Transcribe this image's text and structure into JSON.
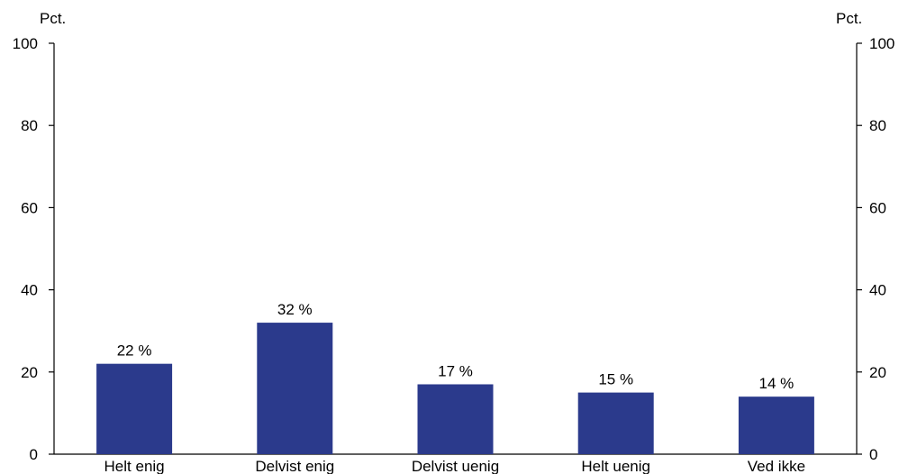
{
  "chart_data": {
    "type": "bar",
    "categories": [
      "Helt enig",
      "Delvist enig",
      "Delvist uenig",
      "Helt uenig",
      "Ved ikke"
    ],
    "values": [
      22,
      32,
      17,
      15,
      14
    ],
    "data_labels": [
      "22 %",
      "32 %",
      "17 %",
      "15 %",
      "14 %"
    ],
    "ylabel_left": "Pct.",
    "ylabel_right": "Pct.",
    "ylim": [
      0,
      100
    ],
    "yticks": [
      0,
      20,
      40,
      60,
      80,
      100
    ],
    "grid": false,
    "bar_color": "#2b3a8c"
  }
}
